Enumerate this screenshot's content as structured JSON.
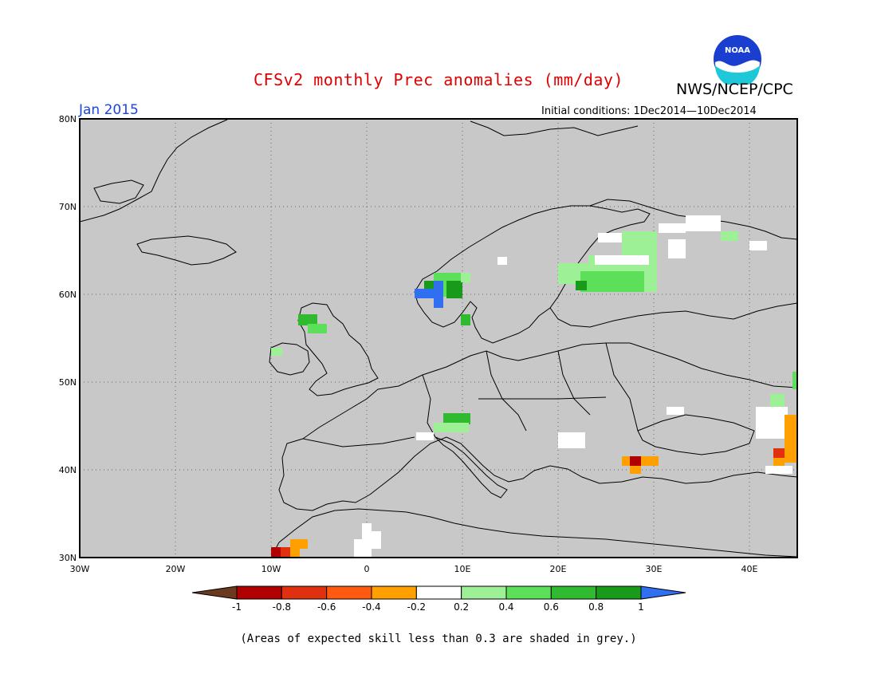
{
  "title": "CFSv2 monthly Prec anomalies (mm/day)",
  "agency": "NWS/NCEP/CPC",
  "logo_text": "NOAA",
  "valid_month": "Jan 2015",
  "initial_conditions": "Initial conditions: 1Dec2014—10Dec2014",
  "footnote": "(Areas of expected skill less than 0.3 are shaded in grey.)",
  "map": {
    "lon_range": [
      -30,
      45
    ],
    "lat_range": [
      30,
      80
    ],
    "background_color": "#c8c8c8",
    "lat_labels": [
      "80N",
      "70N",
      "60N",
      "50N",
      "40N",
      "30N"
    ],
    "lon_labels": [
      "30W",
      "20W",
      "10W",
      "0",
      "10E",
      "20E",
      "30E",
      "40E"
    ],
    "grid": "dotted"
  },
  "colorbar": {
    "tick_labels": [
      "-1",
      "-0.8",
      "-0.6",
      "-0.4",
      "-0.2",
      "0.2",
      "0.4",
      "0.6",
      "0.8",
      "1"
    ],
    "colors": [
      "#6b3a1e",
      "#b00000",
      "#e03010",
      "#ff5a10",
      "#ffa000",
      "#ffffff",
      "#9ef096",
      "#5ce05a",
      "#2fba2f",
      "#1a9a1a",
      "#2f6ff0"
    ]
  },
  "anomaly_regions": [
    {
      "region": "Western Norway",
      "value": 0.9
    },
    {
      "region": "Southwest Norway coast",
      "value": 1.2
    },
    {
      "region": "Finland / Gulf of Bothnia",
      "value": 0.4
    },
    {
      "region": "Northwest Russia",
      "value": 0.1
    },
    {
      "region": "Scotland",
      "value": 0.7
    },
    {
      "region": "Northern Italy",
      "value": 0.7
    },
    {
      "region": "Northwest Turkey",
      "value": -0.7
    },
    {
      "region": "Morocco",
      "value": -0.5
    },
    {
      "region": "Black Sea east coast",
      "value": -0.4
    }
  ]
}
